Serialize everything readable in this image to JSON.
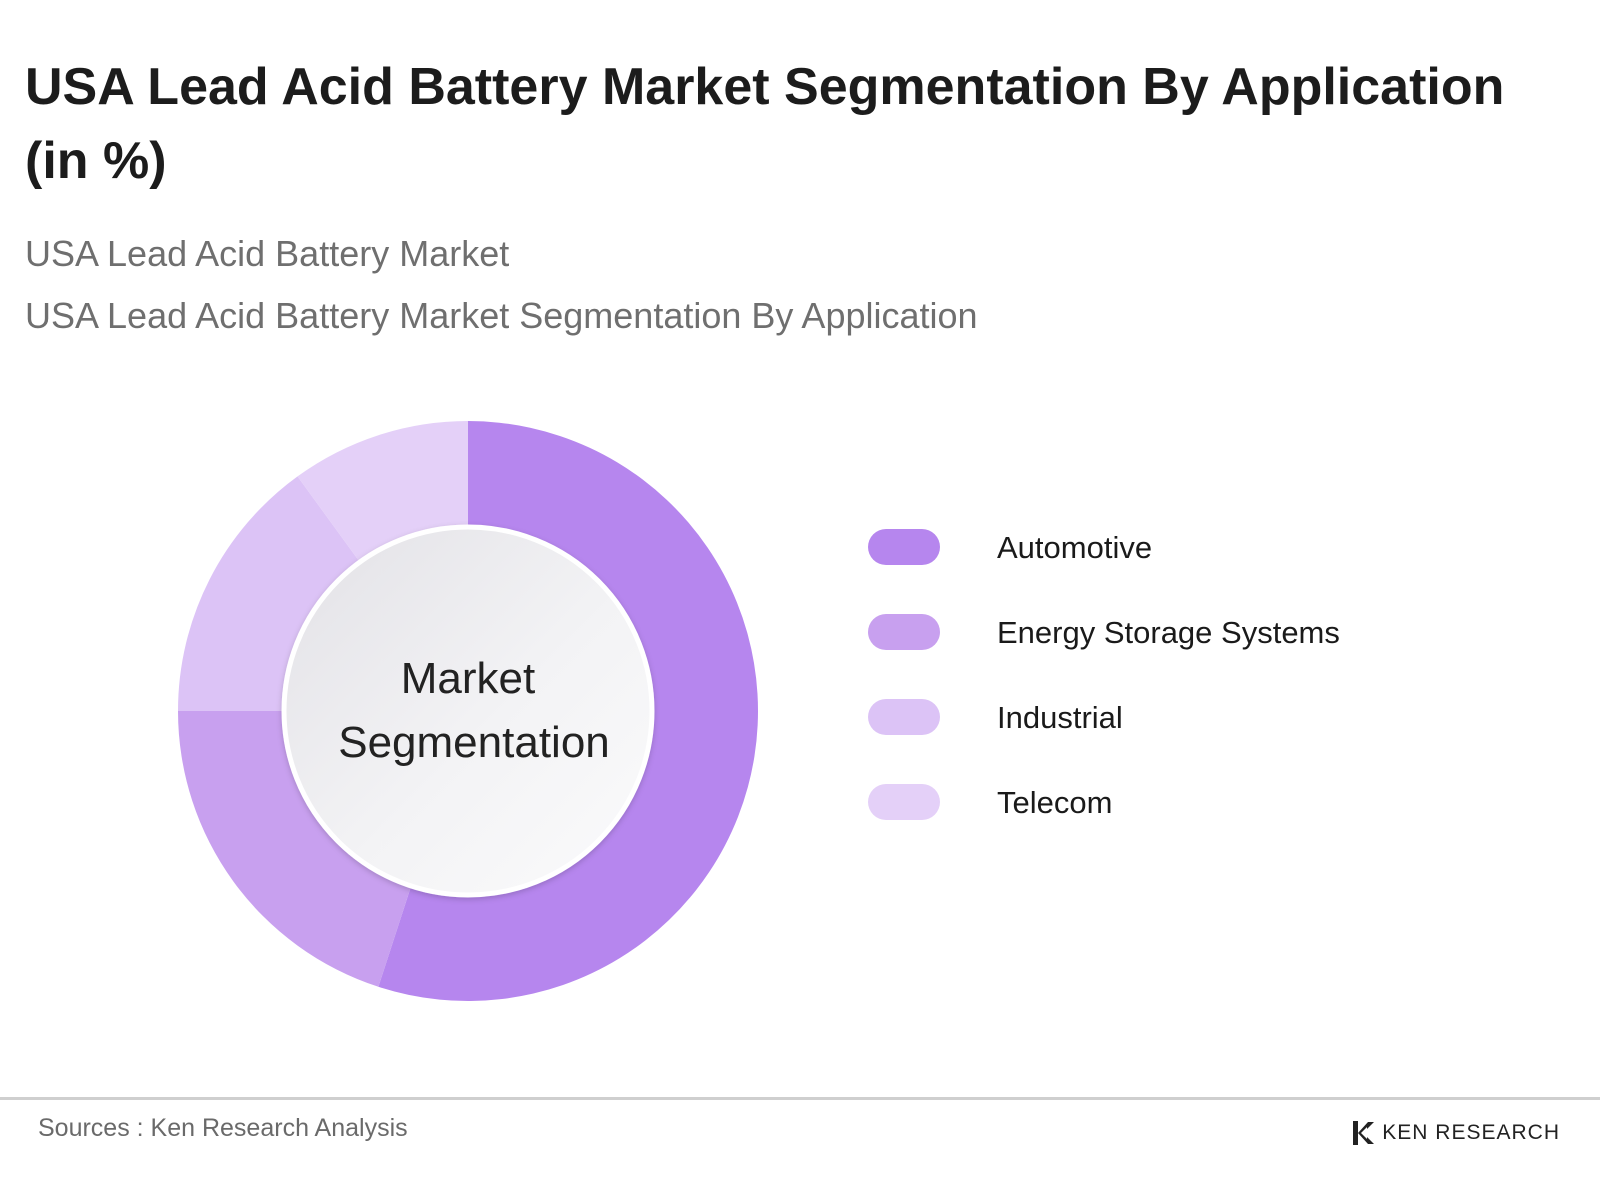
{
  "header": {
    "title": "USA Lead Acid Battery Market Segmentation By Application (in %)",
    "subtitle_1": "USA Lead Acid Battery Market",
    "subtitle_2": "USA Lead Acid Battery Market Segmentation By Application"
  },
  "chart_data": {
    "type": "pie",
    "title": "USA Lead Acid Battery Market Segmentation By Application (in %)",
    "center_label": [
      "Market",
      "Segmentation"
    ],
    "categories": [
      "Automotive",
      "Energy Storage Systems",
      "Industrial",
      "Telecom"
    ],
    "values": [
      55,
      20,
      15,
      10
    ],
    "unit": "%",
    "colors": [
      "#b686ee",
      "#c8a0ef",
      "#dcc3f6",
      "#e4d0f8"
    ],
    "legend_position": "right"
  },
  "footer": {
    "source": "Sources : Ken Research Analysis",
    "brand": "KEN RESEARCH"
  }
}
